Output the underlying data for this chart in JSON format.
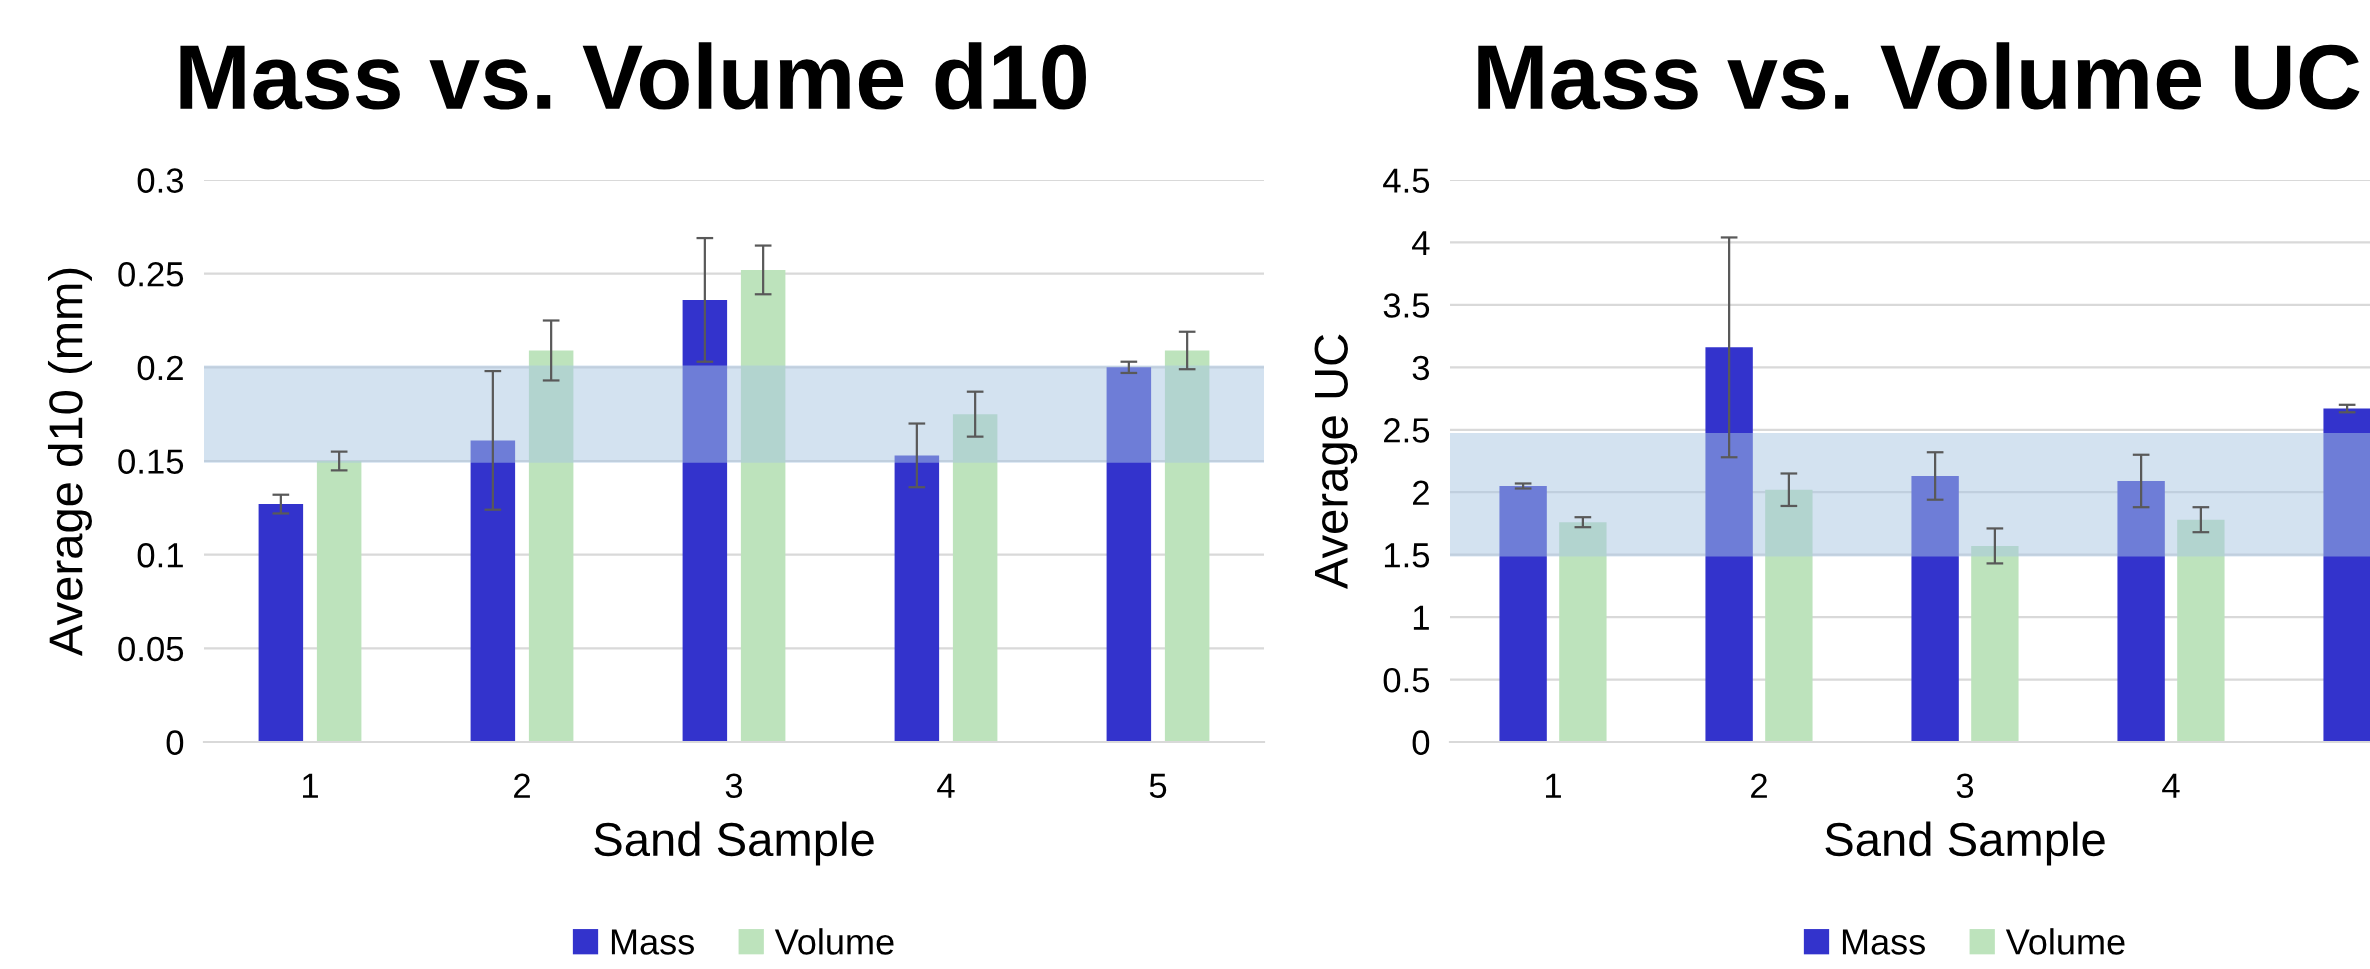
{
  "chart_data": [
    {
      "type": "bar",
      "title": "Mass vs. Volume d10",
      "xlabel": "Sand Sample",
      "ylabel": "Average d10 (mm)",
      "categories": [
        "1",
        "2",
        "3",
        "4",
        "5"
      ],
      "series": [
        {
          "name": "Mass",
          "color": "#3333cc",
          "values": [
            0.127,
            0.161,
            0.236,
            0.153,
            0.2
          ],
          "errors": [
            0.005,
            0.037,
            0.033,
            0.017,
            0.003
          ]
        },
        {
          "name": "Volume",
          "color": "#bde3bc",
          "values": [
            0.15,
            0.209,
            0.252,
            0.175,
            0.209
          ],
          "errors": [
            0.005,
            0.016,
            0.013,
            0.012,
            0.01
          ]
        }
      ],
      "bands": [
        {
          "axis": "y",
          "from": 0.15,
          "to": 0.2,
          "color": "#a9c6e3"
        }
      ],
      "ylim": [
        0,
        0.3
      ],
      "yticks": [
        0,
        0.05,
        0.1,
        0.15,
        0.2,
        0.25,
        0.3
      ],
      "grid": "y",
      "legend": "bottom"
    },
    {
      "type": "bar",
      "title": "Mass vs. Volume UC",
      "xlabel": "Sand Sample",
      "ylabel": "Average UC",
      "categories": [
        "1",
        "2",
        "3",
        "4",
        null
      ],
      "series": [
        {
          "name": "Mass",
          "color": "#3333cc",
          "values": [
            2.05,
            3.16,
            2.13,
            2.09,
            2.67
          ],
          "errors": [
            0.02,
            0.88,
            0.19,
            0.21,
            0.03
          ]
        },
        {
          "name": "Volume",
          "color": "#bde3bc",
          "values": [
            1.76,
            2.02,
            1.57,
            1.78,
            null
          ],
          "errors": [
            0.04,
            0.13,
            0.14,
            0.1,
            null
          ]
        }
      ],
      "bands": [
        {
          "axis": "y",
          "from": 1.5,
          "to": 2.46,
          "color": "#a9c6e3"
        }
      ],
      "ylim": [
        0,
        4.5
      ],
      "yticks": [
        0,
        0.5,
        1,
        1.5,
        2,
        2.5,
        3,
        3.5,
        4,
        4.5
      ],
      "grid": "y",
      "legend": "bottom"
    }
  ]
}
